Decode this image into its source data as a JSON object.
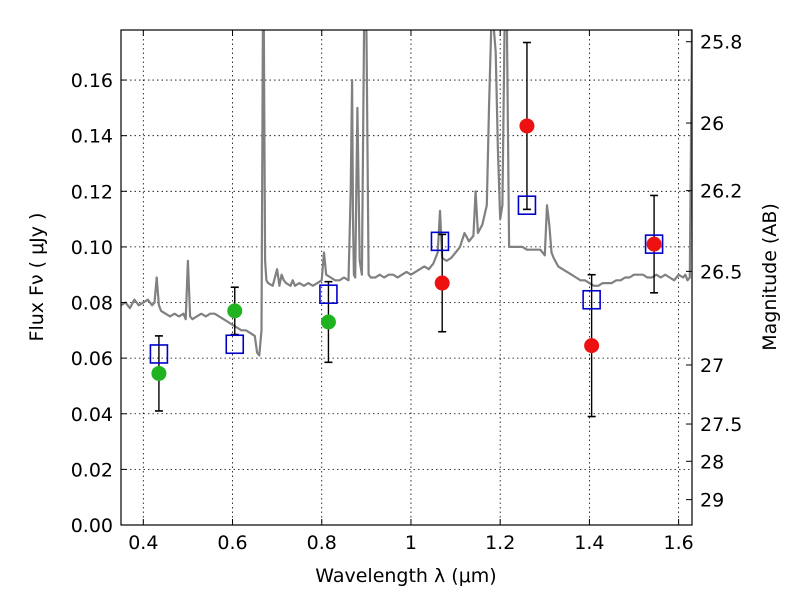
{
  "chart_data": {
    "type": "scatter",
    "xlabel": "Wavelength  λ (μm)",
    "ylabel": "Flux  Fν  ( μJy )",
    "y2label": "Magnitude (AB)",
    "xlim": [
      0.35,
      1.63
    ],
    "ylim": [
      0.0,
      0.178
    ],
    "grid": true,
    "x_ticks": [
      0.4,
      0.6,
      0.8,
      1.0,
      1.2,
      1.4,
      1.6
    ],
    "x_tick_labels": [
      "0.4",
      "0.6",
      "0.8",
      "1",
      "1.2",
      "1.4",
      "1.6"
    ],
    "y_ticks": [
      0.0,
      0.02,
      0.04,
      0.06,
      0.08,
      0.1,
      0.12,
      0.14,
      0.16
    ],
    "y_tick_labels": [
      "0.00",
      "0.02",
      "0.04",
      "0.06",
      "0.08",
      "0.10",
      "0.12",
      "0.14",
      "0.16"
    ],
    "y2_ticks": [
      {
        "label": "25.8",
        "mag": 25.8
      },
      {
        "label": "26",
        "mag": 26.0
      },
      {
        "label": "26.2",
        "mag": 26.2
      },
      {
        "label": "26.5",
        "mag": 26.5
      },
      {
        "label": "27",
        "mag": 27.0
      },
      {
        "label": "27.5",
        "mag": 27.5
      },
      {
        "label": "28",
        "mag": 28.0
      },
      {
        "label": "29",
        "mag": 29.0
      }
    ],
    "colors": {
      "spectrum": "#808080",
      "model_square": "#0000cc",
      "green_point": "#1fb31f",
      "red_point": "#ee1111",
      "errorbar": "#000000",
      "grid": "#000000"
    },
    "spectrum": {
      "name": "",
      "x": [
        0.35,
        0.36,
        0.37,
        0.38,
        0.39,
        0.4,
        0.41,
        0.42,
        0.425,
        0.43,
        0.435,
        0.44,
        0.45,
        0.46,
        0.47,
        0.48,
        0.49,
        0.495,
        0.5,
        0.505,
        0.51,
        0.52,
        0.53,
        0.54,
        0.55,
        0.56,
        0.57,
        0.58,
        0.59,
        0.6,
        0.61,
        0.62,
        0.63,
        0.64,
        0.65,
        0.655,
        0.66,
        0.665,
        0.668,
        0.67,
        0.673,
        0.676,
        0.68,
        0.69,
        0.7,
        0.705,
        0.71,
        0.715,
        0.72,
        0.73,
        0.735,
        0.74,
        0.75,
        0.76,
        0.77,
        0.78,
        0.79,
        0.8,
        0.805,
        0.81,
        0.82,
        0.83,
        0.84,
        0.85,
        0.86,
        0.865,
        0.868,
        0.87,
        0.872,
        0.875,
        0.88,
        0.885,
        0.89,
        0.895,
        0.9,
        0.905,
        0.91,
        0.92,
        0.93,
        0.94,
        0.95,
        0.96,
        0.97,
        0.98,
        0.99,
        1.0,
        1.01,
        1.02,
        1.03,
        1.04,
        1.05,
        1.06,
        1.065,
        1.07,
        1.08,
        1.09,
        1.1,
        1.11,
        1.12,
        1.13,
        1.14,
        1.145,
        1.15,
        1.16,
        1.17,
        1.175,
        1.18,
        1.185,
        1.19,
        1.195,
        1.2,
        1.205,
        1.21,
        1.215,
        1.22,
        1.23,
        1.24,
        1.25,
        1.26,
        1.27,
        1.28,
        1.29,
        1.3,
        1.305,
        1.31,
        1.315,
        1.32,
        1.33,
        1.34,
        1.35,
        1.36,
        1.37,
        1.38,
        1.39,
        1.4,
        1.41,
        1.42,
        1.43,
        1.44,
        1.45,
        1.46,
        1.47,
        1.48,
        1.49,
        1.5,
        1.51,
        1.52,
        1.53,
        1.54,
        1.55,
        1.56,
        1.57,
        1.58,
        1.59,
        1.6,
        1.61,
        1.615,
        1.62,
        1.625,
        1.63
      ],
      "y": [
        0.079,
        0.08,
        0.078,
        0.081,
        0.079,
        0.08,
        0.081,
        0.079,
        0.08,
        0.089,
        0.079,
        0.077,
        0.076,
        0.075,
        0.076,
        0.075,
        0.076,
        0.074,
        0.095,
        0.075,
        0.074,
        0.075,
        0.076,
        0.075,
        0.076,
        0.076,
        0.075,
        0.074,
        0.073,
        0.072,
        0.071,
        0.07,
        0.07,
        0.069,
        0.068,
        0.062,
        0.061,
        0.07,
        0.18,
        0.18,
        0.095,
        0.088,
        0.087,
        0.086,
        0.092,
        0.086,
        0.09,
        0.088,
        0.087,
        0.086,
        0.088,
        0.086,
        0.087,
        0.086,
        0.087,
        0.086,
        0.087,
        0.088,
        0.098,
        0.09,
        0.089,
        0.088,
        0.088,
        0.089,
        0.088,
        0.12,
        0.16,
        0.11,
        0.09,
        0.089,
        0.15,
        0.095,
        0.09,
        0.18,
        0.18,
        0.09,
        0.089,
        0.089,
        0.09,
        0.089,
        0.09,
        0.09,
        0.089,
        0.09,
        0.091,
        0.09,
        0.091,
        0.092,
        0.093,
        0.092,
        0.094,
        0.098,
        0.113,
        0.096,
        0.095,
        0.096,
        0.098,
        0.1,
        0.105,
        0.102,
        0.104,
        0.12,
        0.105,
        0.108,
        0.115,
        0.15,
        0.18,
        0.18,
        0.17,
        0.135,
        0.11,
        0.115,
        0.18,
        0.18,
        0.1,
        0.1,
        0.1,
        0.1,
        0.099,
        0.099,
        0.099,
        0.099,
        0.097,
        0.115,
        0.108,
        0.098,
        0.096,
        0.093,
        0.092,
        0.091,
        0.09,
        0.089,
        0.088,
        0.088,
        0.087,
        0.086,
        0.086,
        0.087,
        0.087,
        0.087,
        0.088,
        0.088,
        0.089,
        0.089,
        0.09,
        0.09,
        0.09,
        0.089,
        0.089,
        0.09,
        0.089,
        0.09,
        0.089,
        0.088,
        0.09,
        0.089,
        0.09,
        0.088,
        0.089,
        0.18
      ]
    },
    "model_points": {
      "x": [
        0.435,
        0.605,
        0.815,
        1.065,
        1.26,
        1.405,
        1.545
      ],
      "y": [
        0.0615,
        0.065,
        0.083,
        0.102,
        0.115,
        0.081,
        0.101
      ]
    },
    "green_points": {
      "x": [
        0.435,
        0.605,
        0.815
      ],
      "y": [
        0.0545,
        0.077,
        0.073
      ],
      "yerr": [
        0.0135,
        0.0085,
        0.0145
      ]
    },
    "red_points": {
      "x": [
        1.07,
        1.26,
        1.405,
        1.545
      ],
      "y": [
        0.087,
        0.1435,
        0.0645,
        0.101
      ],
      "yerr": [
        0.0175,
        0.03,
        0.0255,
        0.0175
      ]
    }
  }
}
